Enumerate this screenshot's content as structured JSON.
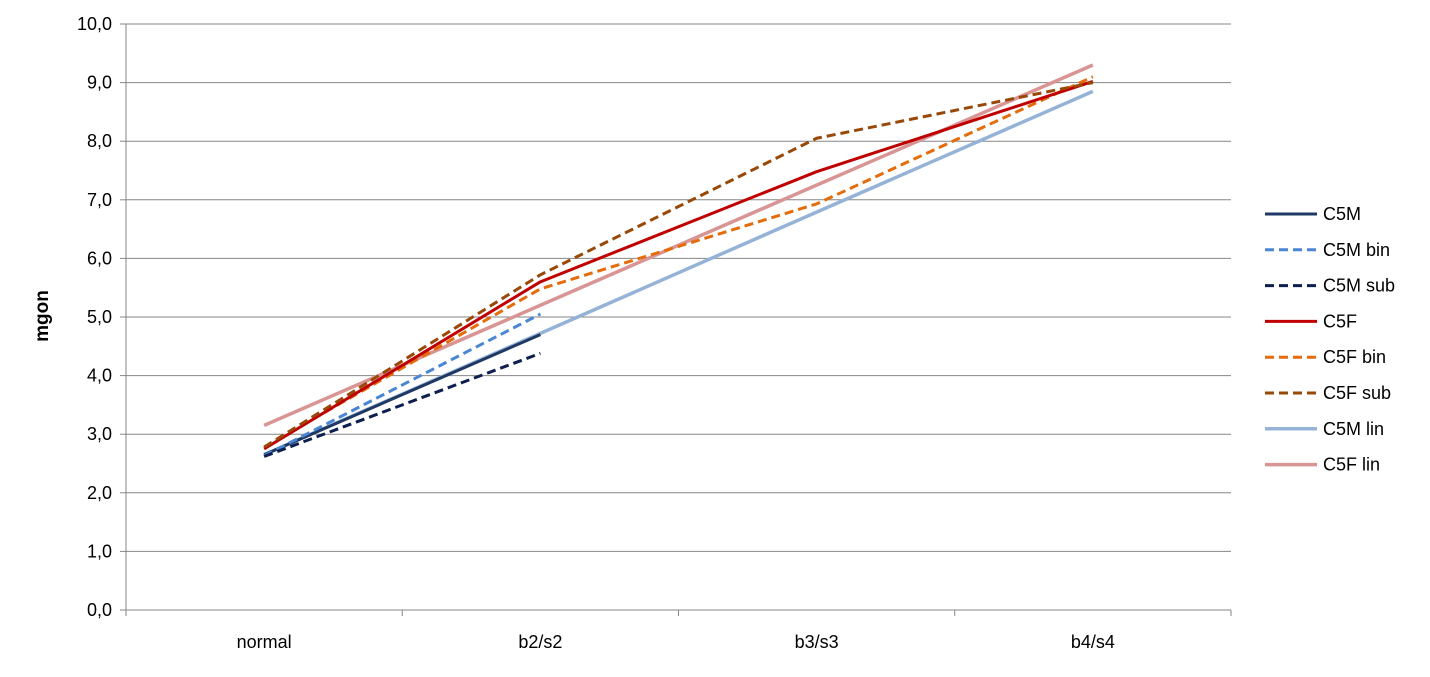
{
  "chart_data": {
    "type": "line",
    "title": "",
    "xlabel": "",
    "ylabel": "mgon",
    "categories": [
      "normal",
      "b2/s2",
      "b3/s3",
      "b4/s4"
    ],
    "ylim": [
      0,
      10
    ],
    "ytick_step": 1,
    "ytick_labels": [
      "0,0",
      "1,0",
      "2,0",
      "3,0",
      "4,0",
      "5,0",
      "6,0",
      "7,0",
      "8,0",
      "9,0",
      "10,0"
    ],
    "grid": true,
    "legend_position": "right",
    "series": [
      {
        "name": "C5M",
        "values": [
          2.65,
          4.7,
          null,
          null
        ],
        "color": "#1f3864",
        "dash": "solid",
        "width": 3
      },
      {
        "name": "C5M bin",
        "values": [
          2.63,
          5.05,
          null,
          null
        ],
        "color": "#4a86d4",
        "dash": "dashed",
        "width": 3
      },
      {
        "name": "C5M sub",
        "values": [
          2.62,
          4.38,
          null,
          null
        ],
        "color": "#0d1f4f",
        "dash": "dashed",
        "width": 3
      },
      {
        "name": "C5F",
        "values": [
          2.75,
          5.6,
          7.48,
          9.02
        ],
        "color": "#c00000",
        "dash": "solid",
        "width": 3
      },
      {
        "name": "C5F bin",
        "values": [
          2.78,
          5.48,
          6.93,
          9.1
        ],
        "color": "#e46c0a",
        "dash": "dashed",
        "width": 3
      },
      {
        "name": "C5F sub",
        "values": [
          2.78,
          5.72,
          8.05,
          9.0
        ],
        "color": "#984807",
        "dash": "dashed",
        "width": 3
      },
      {
        "name": "C5M lin",
        "values": [
          2.65,
          4.72,
          6.79,
          8.85
        ],
        "color": "#95b3d7",
        "dash": "solid",
        "width": 3.5
      },
      {
        "name": "C5F lin",
        "values": [
          3.15,
          5.2,
          7.25,
          9.3
        ],
        "color": "#d99594",
        "dash": "solid",
        "width": 3.5
      }
    ]
  }
}
